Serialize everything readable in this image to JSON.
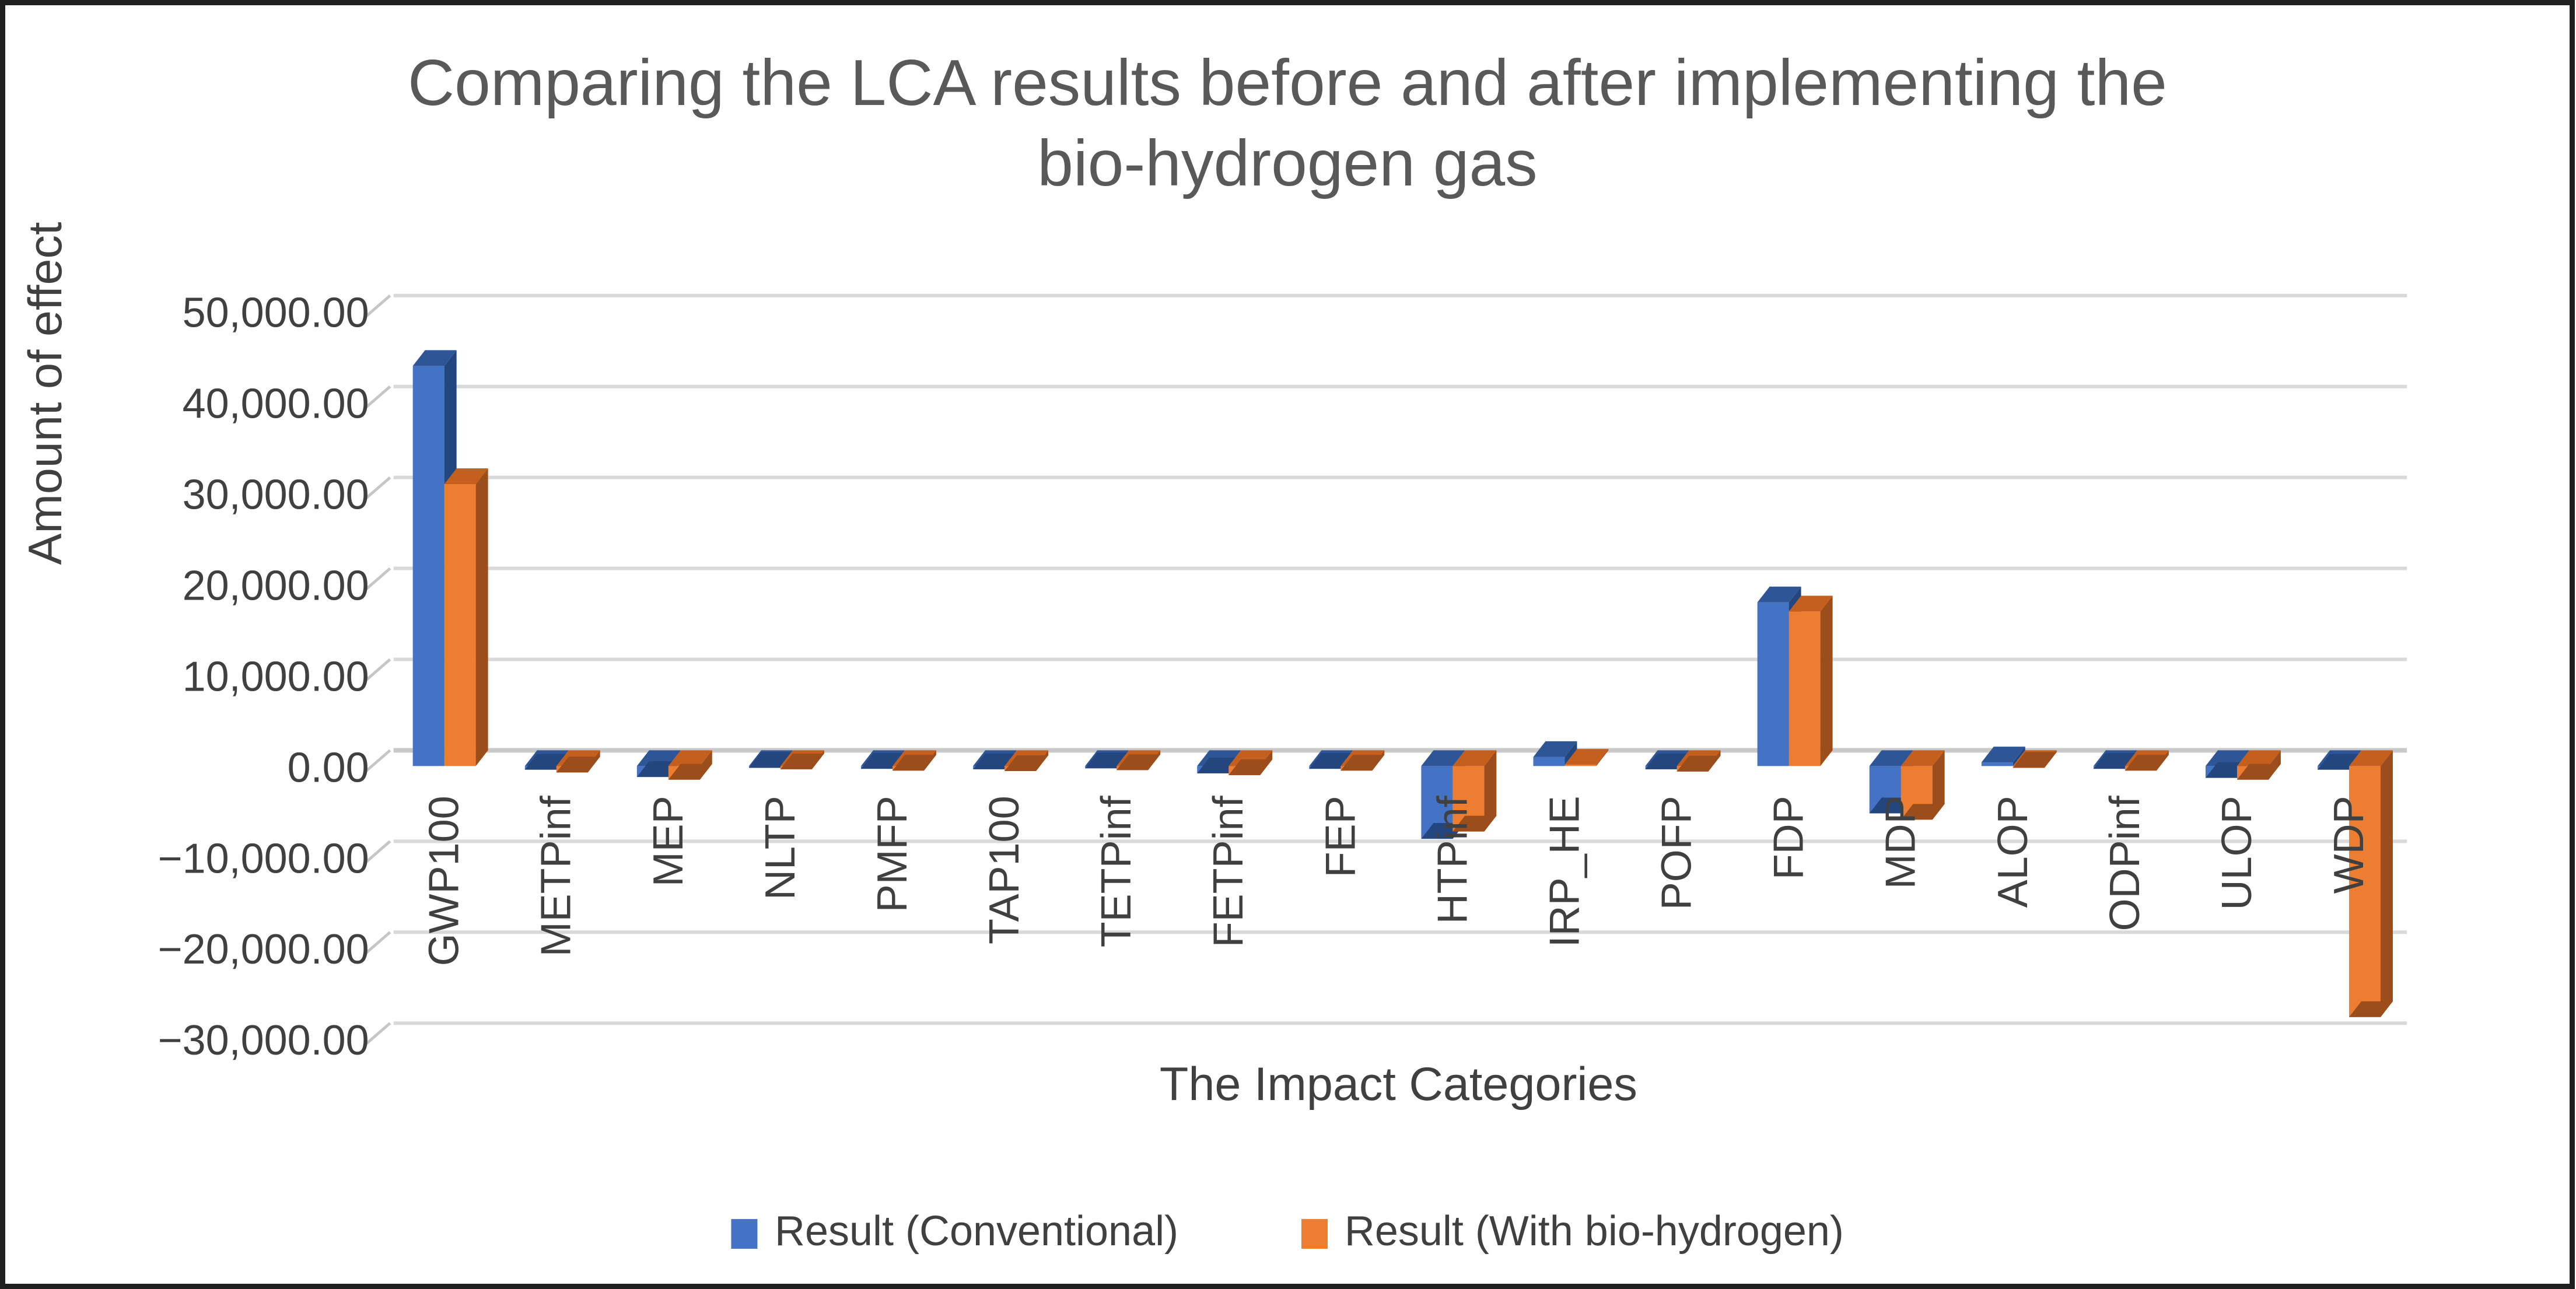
{
  "title": {
    "line1": "Comparing the LCA results before and after implementing the",
    "line2": "bio-hydrogen gas"
  },
  "y_axis": {
    "title": "Amount of effect",
    "tick_labels": [
      "50,000.00",
      "40,000.00",
      "30,000.00",
      "20,000.00",
      "10,000.00",
      "0.00",
      "−10,000.00",
      "−20,000.00",
      "−30,000.00"
    ],
    "tick_values": [
      50000,
      40000,
      30000,
      20000,
      10000,
      0,
      -10000,
      -20000,
      -30000
    ]
  },
  "x_axis": {
    "title": "The Impact Categories"
  },
  "legend": {
    "items": [
      {
        "label": "Result (Conventional)",
        "color": "#4472C4"
      },
      {
        "label": "Result (With bio-hydrogen)",
        "color": "#ED7D31"
      }
    ]
  },
  "colors": {
    "blue_front": "#4472C4",
    "blue_top": "#2E5697",
    "blue_side": "#24467F",
    "orange_front": "#ED7D31",
    "orange_top": "#C55F1E",
    "orange_side": "#9C4D1C",
    "gridline": "#D9D9D9",
    "zero_line": "#C9C9C9",
    "tick": "#C6C6C6",
    "label_text": "#404040",
    "title_text": "#595959"
  },
  "chart_data": {
    "type": "bar",
    "style": "3d-clustered-column",
    "title": "Comparing the LCA results before and after implementing the bio-hydrogen gas",
    "xlabel": "The Impact Categories",
    "ylabel": "Amount of effect",
    "ylim": [
      -30000,
      50000
    ],
    "y_tick_step": 10000,
    "grid": true,
    "legend_position": "bottom",
    "categories": [
      "GWP100",
      "METPinf",
      "MEP",
      "NLTP",
      "PMFP",
      "TAP100",
      "TETPinf",
      "FETPinf",
      "FEP",
      "HTPinf",
      "IRP_HE",
      "POFP",
      "FDP",
      "MDP",
      "ALOP",
      "ODPinf",
      "ULOP",
      "WDP"
    ],
    "series": [
      {
        "name": "Result (Conventional)",
        "color": "#4472C4",
        "values": [
          44000,
          -400,
          -1200,
          -200,
          -300,
          -350,
          -250,
          -800,
          -300,
          -8000,
          1000,
          -350,
          18000,
          -5200,
          400,
          -300,
          -1300,
          -400
        ]
      },
      {
        "name": "Result (With bio-hydrogen)",
        "color": "#ED7D31",
        "values": [
          31000,
          -700,
          -1500,
          -350,
          -500,
          -550,
          -450,
          -1000,
          -500,
          -7200,
          150,
          -600,
          17000,
          -5900,
          -200,
          -500,
          -1500,
          -27600
        ]
      }
    ]
  }
}
